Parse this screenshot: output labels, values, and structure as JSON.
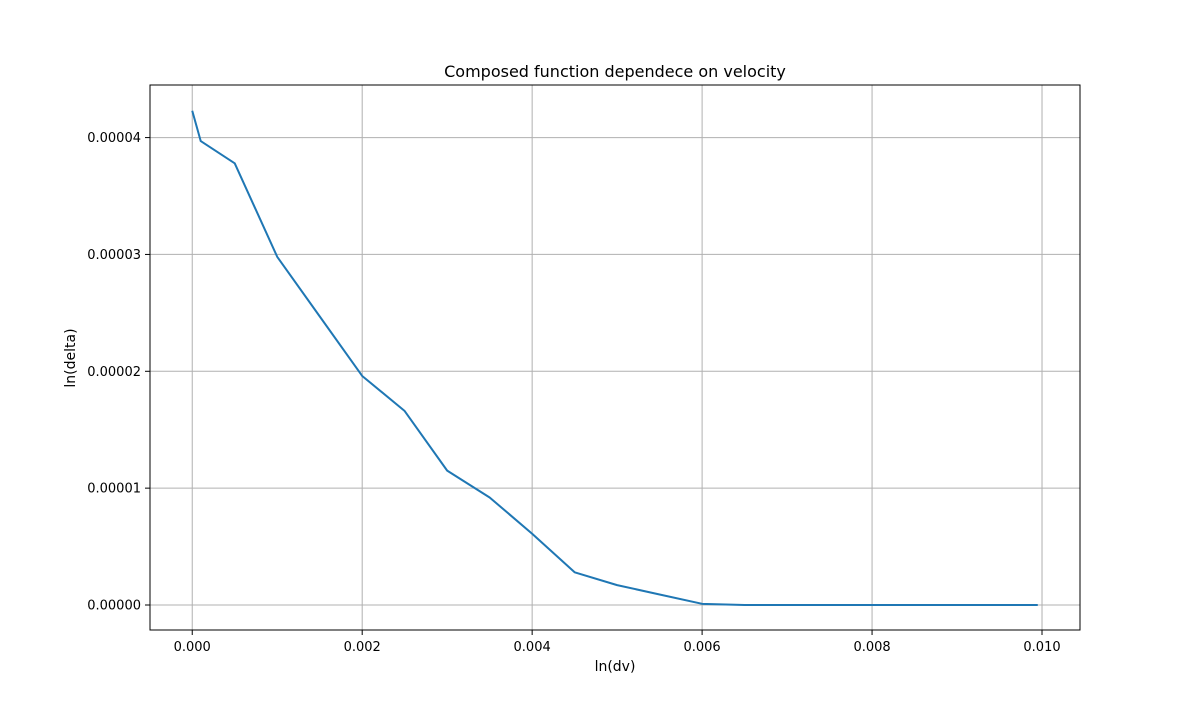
{
  "chart_data": {
    "type": "line",
    "title": "Composed function dependece on velocity",
    "xlabel": "ln(dv)",
    "ylabel": "ln(delta)",
    "xlim": [
      -0.000497,
      0.010447
    ],
    "ylim": [
      -2.14e-06,
      4.45e-05
    ],
    "grid": true,
    "xticks": [
      0.0,
      0.002,
      0.004,
      0.006,
      0.008,
      0.01
    ],
    "xtick_labels": [
      "0.000",
      "0.002",
      "0.004",
      "0.006",
      "0.008",
      "0.010"
    ],
    "yticks": [
      0.0,
      1e-05,
      2e-05,
      3e-05,
      4e-05
    ],
    "ytick_labels": [
      "0.00000",
      "0.00001",
      "0.00002",
      "0.00003",
      "0.00004"
    ],
    "series": [
      {
        "color": "#1f77b4",
        "x": [
          0.0,
          0.0001,
          0.0005,
          0.001,
          0.0015,
          0.002,
          0.0025,
          0.003,
          0.0035,
          0.004,
          0.0045,
          0.005,
          0.0055,
          0.006,
          0.0065,
          0.007,
          0.0075,
          0.008,
          0.0085,
          0.009,
          0.0095,
          0.00995
        ],
        "y": [
          4.23e-05,
          3.97e-05,
          3.78e-05,
          2.98e-05,
          2.47e-05,
          1.96e-05,
          1.66e-05,
          1.15e-05,
          9.2e-06,
          6.1e-06,
          2.8e-06,
          1.7e-06,
          9e-07,
          1e-07,
          0.0,
          0.0,
          0.0,
          0.0,
          0.0,
          0.0,
          0.0,
          0.0
        ]
      }
    ]
  }
}
